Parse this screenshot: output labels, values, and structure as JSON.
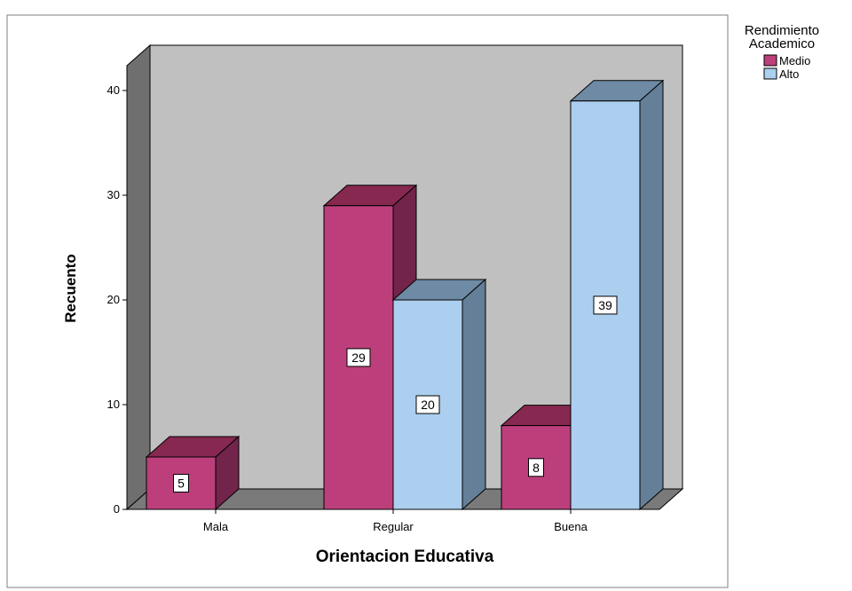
{
  "chart_data": {
    "type": "bar",
    "categories": [
      "Mala",
      "Regular",
      "Buena"
    ],
    "series": [
      {
        "name": "Medio",
        "values": [
          5,
          29,
          8
        ],
        "color": "#BC3F7C",
        "side_color": "#72244A",
        "top_color": "#86284F"
      },
      {
        "name": "Alto",
        "values": [
          null,
          20,
          39
        ],
        "color": "#ACCFEF",
        "side_color": "#647F97",
        "top_color": "#6E8AA4"
      }
    ],
    "xlabel": "Orientacion Educativa",
    "ylabel": "Recuento",
    "ylim": [
      0,
      40
    ],
    "yticks": [
      0,
      10,
      20,
      30,
      40
    ],
    "legend": {
      "title": "Rendimiento Academico",
      "title_lines": [
        "Rendimiento",
        "Academico"
      ],
      "placement": "top-right"
    },
    "style": "3d",
    "colors": {
      "wall": "#C0C0C0",
      "side_wall": "#6F6F6F",
      "floor": "#7A7A7A",
      "background": "#FFFFFF"
    }
  }
}
